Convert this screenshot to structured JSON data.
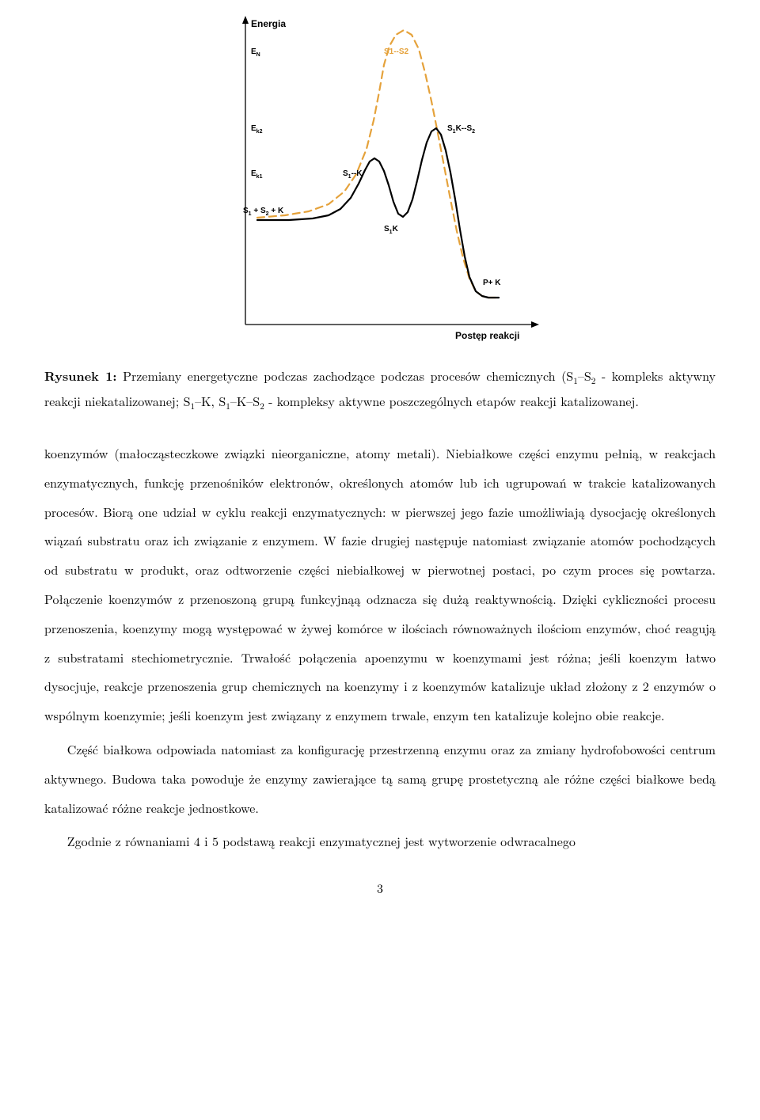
{
  "figure": {
    "type": "line",
    "y_axis_label": "Energia",
    "x_axis_label": "Postęp reakcji",
    "background_color": "#ffffff",
    "axis_color": "#000000",
    "annotations": {
      "EN": "Eₙ",
      "Ek2": "E_{k2}",
      "Ek1": "E_{k1}",
      "S1S2K": "S₁ + S₂ + K",
      "S1K": "S₁K",
      "S1dashK": "S₁--K",
      "S1KS2": "S₁K--S₂",
      "S1S2": "S1--S2",
      "PK": "P+ K"
    },
    "annotation_font_size": 10,
    "annotation_bold": true,
    "curves": [
      {
        "name": "uncatalyzed",
        "color": "#e5a23b",
        "stroke_width": 2.2,
        "dash": "9,6",
        "points": [
          [
            60,
            255
          ],
          [
            95,
            252
          ],
          [
            125,
            247
          ],
          [
            150,
            238
          ],
          [
            170,
            222
          ],
          [
            185,
            200
          ],
          [
            198,
            168
          ],
          [
            207,
            132
          ],
          [
            214,
            96
          ],
          [
            220,
            62
          ],
          [
            227,
            38
          ],
          [
            235,
            24
          ],
          [
            245,
            18
          ],
          [
            255,
            24
          ],
          [
            264,
            42
          ],
          [
            272,
            72
          ],
          [
            280,
            108
          ],
          [
            288,
            148
          ],
          [
            296,
            190
          ],
          [
            304,
            232
          ],
          [
            312,
            272
          ],
          [
            320,
            306
          ],
          [
            328,
            332
          ],
          [
            336,
            348
          ],
          [
            344,
            354
          ],
          [
            352,
            356
          ],
          [
            365,
            356
          ]
        ]
      },
      {
        "name": "catalyzed",
        "color": "#000000",
        "stroke_width": 2.2,
        "dash": null,
        "points": [
          [
            60,
            258
          ],
          [
            100,
            258
          ],
          [
            130,
            256
          ],
          [
            150,
            252
          ],
          [
            165,
            244
          ],
          [
            178,
            230
          ],
          [
            188,
            212
          ],
          [
            196,
            195
          ],
          [
            202,
            184
          ],
          [
            208,
            180
          ],
          [
            214,
            184
          ],
          [
            220,
            196
          ],
          [
            226,
            214
          ],
          [
            232,
            235
          ],
          [
            238,
            250
          ],
          [
            244,
            254
          ],
          [
            250,
            248
          ],
          [
            256,
            232
          ],
          [
            262,
            208
          ],
          [
            268,
            182
          ],
          [
            274,
            160
          ],
          [
            280,
            146
          ],
          [
            286,
            142
          ],
          [
            292,
            150
          ],
          [
            298,
            170
          ],
          [
            304,
            198
          ],
          [
            310,
            232
          ],
          [
            316,
            270
          ],
          [
            322,
            304
          ],
          [
            328,
            330
          ],
          [
            336,
            348
          ],
          [
            344,
            354
          ],
          [
            352,
            356
          ],
          [
            365,
            356
          ]
        ]
      }
    ],
    "x_range": [
      40,
      400
    ],
    "y_range": [
      0,
      390
    ]
  },
  "caption": {
    "label": "Rysunek 1:",
    "text_before": " Przemiany energetyczne podczas zachodzące podczas procesów chemicznych (S",
    "s1": "1",
    "dash1": "–S",
    "s2": "2",
    "text_mid1": " - kompleks aktywny reakcji niekatalizowanej; S",
    "s1b": "1",
    "dash2": "–K, S",
    "s1c": "1",
    "dash3": "–K–S",
    "s2b": "2",
    "text_after": " - kompleksy aktywne poszczególnych etapów reakcji katalizowanej."
  },
  "para1": "koenzymów (małocząsteczkowe związki nieorganiczne, atomy metali). Niebiałkowe części enzymu pełnią, w reakcjach enzymatycznych, funkcję przenośników elektronów, określonych atomów lub ich ugrupowań w trakcie katalizowanych procesów. Biorą one udział w cyklu reakcji enzymatycznych: w pierwszej jego fazie umożliwiają dysocjację określonych wiązań substratu oraz ich związanie z enzymem. W fazie drugiej następuje natomiast związanie atomów pochodzących od substratu w produkt, oraz odtworzenie części niebiałkowej w pierwotnej postaci, po czym proces się powtarza. Połączenie koenzymów z przenoszoną grupą funkcyjnąą odznacza się dużą reaktywnością. Dzięki cykliczności procesu przenoszenia, koenzymy mogą występować w żywej komórce w ilościach równoważnych ilościom enzymów, choć reagują z substratami stechiometrycznie. Trwałość połączenia apoenzymu w koenzymami jest różna; jeśli koenzym łatwo dysocjuje, reakcje przenoszenia grup chemicznych na koenzymy i z koenzymów katalizuje układ złożony z 2 enzymów o wspólnym koenzymie; jeśli koenzym jest związany z enzymem trwale, enzym ten katalizuje kolejno obie reakcje.",
  "para2": "Część białkowa odpowiada natomiast za konfigurację przestrzenną enzymu oraz za zmiany hydrofobowości centrum aktywnego. Budowa taka powoduje że enzymy zawierające tą samą grupę prostetyczną ale różne części białkowe bedą katalizować różne reakcje jednostkowe.",
  "para3": "Zgodnie z równaniami 4 i 5 podstawą reakcji enzymatycznej jest wytworzenie odwracalnego",
  "page_number": "3"
}
